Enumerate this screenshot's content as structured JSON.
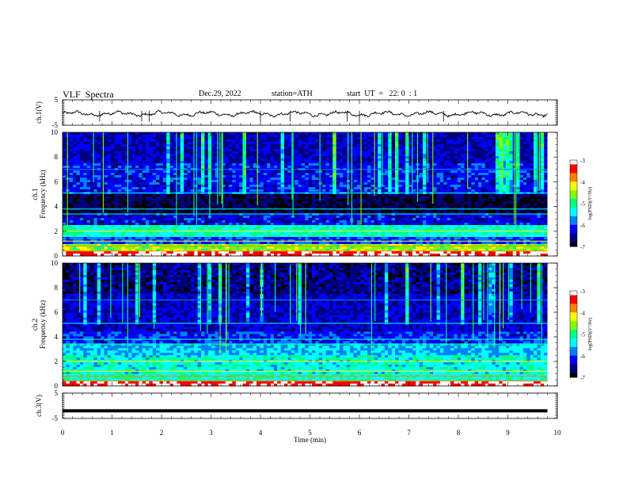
{
  "header": {
    "title": "VLF  Spectra",
    "date": "Dec.29, 2022",
    "station": "station=ATH",
    "start_ut": "start  UT  =   22: 0  : 1"
  },
  "colors": {
    "colormap": [
      "#000000",
      "#00007f",
      "#0000ff",
      "#0080ff",
      "#00ffff",
      "#00ff80",
      "#80ff00",
      "#ffff00",
      "#ff8000",
      "#ff0000",
      "#ffffff"
    ],
    "trace": "#000000"
  },
  "chart_data": [
    {
      "type": "line",
      "ylabel": "ch.1(V)",
      "ylim": [
        -5,
        5
      ],
      "yticks": [
        "5",
        "-5"
      ],
      "xlim": [
        0,
        10
      ],
      "description_values": "waveform oscillating near -0.5 V throughout",
      "series": [
        {
          "values_approx": -0.5
        }
      ]
    },
    {
      "type": "heatmap",
      "ylabel": "ch.1\nFrequency  (kHz)",
      "ylim": [
        0,
        10
      ],
      "yticks": [
        "0",
        "2",
        "4",
        "6",
        "8",
        "10"
      ],
      "xlim": [
        0,
        10
      ],
      "colorbar": {
        "label": "log(PSD)(V²/Hz)",
        "range": [
          -7,
          -3
        ],
        "ticks": [
          "-3",
          "-4",
          "-5",
          "-6",
          "-7"
        ]
      }
    },
    {
      "type": "heatmap",
      "ylabel": "ch.2\nFrequency  (kHz)",
      "ylim": [
        0,
        10
      ],
      "yticks": [
        "0",
        "2",
        "4",
        "6",
        "8",
        "10"
      ],
      "xlim": [
        0,
        10
      ],
      "colorbar": {
        "label": "log(PSD)(V²/Hz)",
        "range": [
          -7,
          -3
        ],
        "ticks": [
          "-3",
          "-4",
          "-5",
          "-6",
          "-7"
        ]
      }
    },
    {
      "type": "line",
      "ylabel": "ch.3(V)",
      "ylim": [
        -5,
        5
      ],
      "yticks": [
        "5",
        "-5"
      ],
      "xlim": [
        0,
        10
      ],
      "xlabel": "Time  (min)",
      "xticks": [
        "0",
        "1",
        "2",
        "3",
        "4",
        "5",
        "6",
        "7",
        "8",
        "9",
        "10"
      ],
      "series": [
        {
          "values_approx": -2.0
        }
      ]
    }
  ]
}
